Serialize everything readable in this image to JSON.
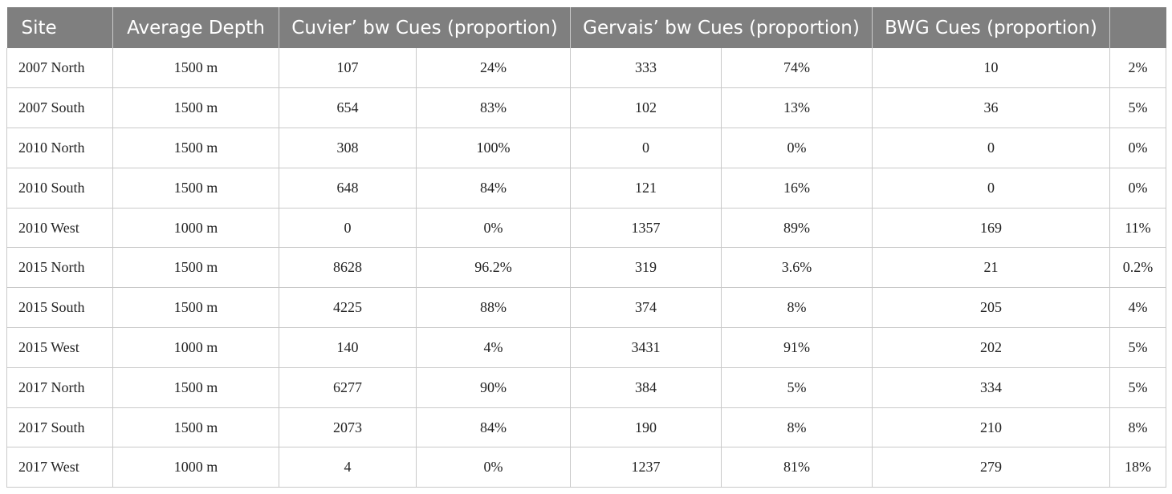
{
  "table": {
    "headers": [
      "Site",
      "Average Depth",
      "Cuvier’ bw Cues (proportion)",
      "Gervais’ bw Cues (proportion)",
      "BWG Cues (proportion)",
      ""
    ],
    "rows": [
      [
        "2007 North",
        "1500 m",
        "107",
        "24%",
        "333",
        "74%",
        "10",
        "2%"
      ],
      [
        "2007 South",
        "1500 m",
        "654",
        "83%",
        "102",
        "13%",
        "36",
        "5%"
      ],
      [
        "2010 North",
        "1500 m",
        "308",
        "100%",
        "0",
        "0%",
        "0",
        "0%"
      ],
      [
        "2010 South",
        "1500 m",
        "648",
        "84%",
        "121",
        "16%",
        "0",
        "0%"
      ],
      [
        "2010 West",
        "1000 m",
        "0",
        "0%",
        "1357",
        "89%",
        "169",
        "11%"
      ],
      [
        "2015 North",
        "1500 m",
        "8628",
        "96.2%",
        "319",
        "3.6%",
        "21",
        "0.2%"
      ],
      [
        "2015 South",
        "1500 m",
        "4225",
        "88%",
        "374",
        "8%",
        "205",
        "4%"
      ],
      [
        "2015 West",
        "1000 m",
        "140",
        "4%",
        "3431",
        "91%",
        "202",
        "5%"
      ],
      [
        "2017 North",
        "1500 m",
        "6277",
        "90%",
        "384",
        "5%",
        "334",
        "5%"
      ],
      [
        "2017 South",
        "1500 m",
        "2073",
        "84%",
        "190",
        "8%",
        "210",
        "8%"
      ],
      [
        "2017 West",
        "1000 m",
        "4",
        "0%",
        "1237",
        "81%",
        "279",
        "18%"
      ]
    ]
  },
  "colors": {
    "header_background": "#7f7f7f",
    "header_text": "#ffffff",
    "grid_lines": "#c9c9c9",
    "body_text": "#222222"
  }
}
